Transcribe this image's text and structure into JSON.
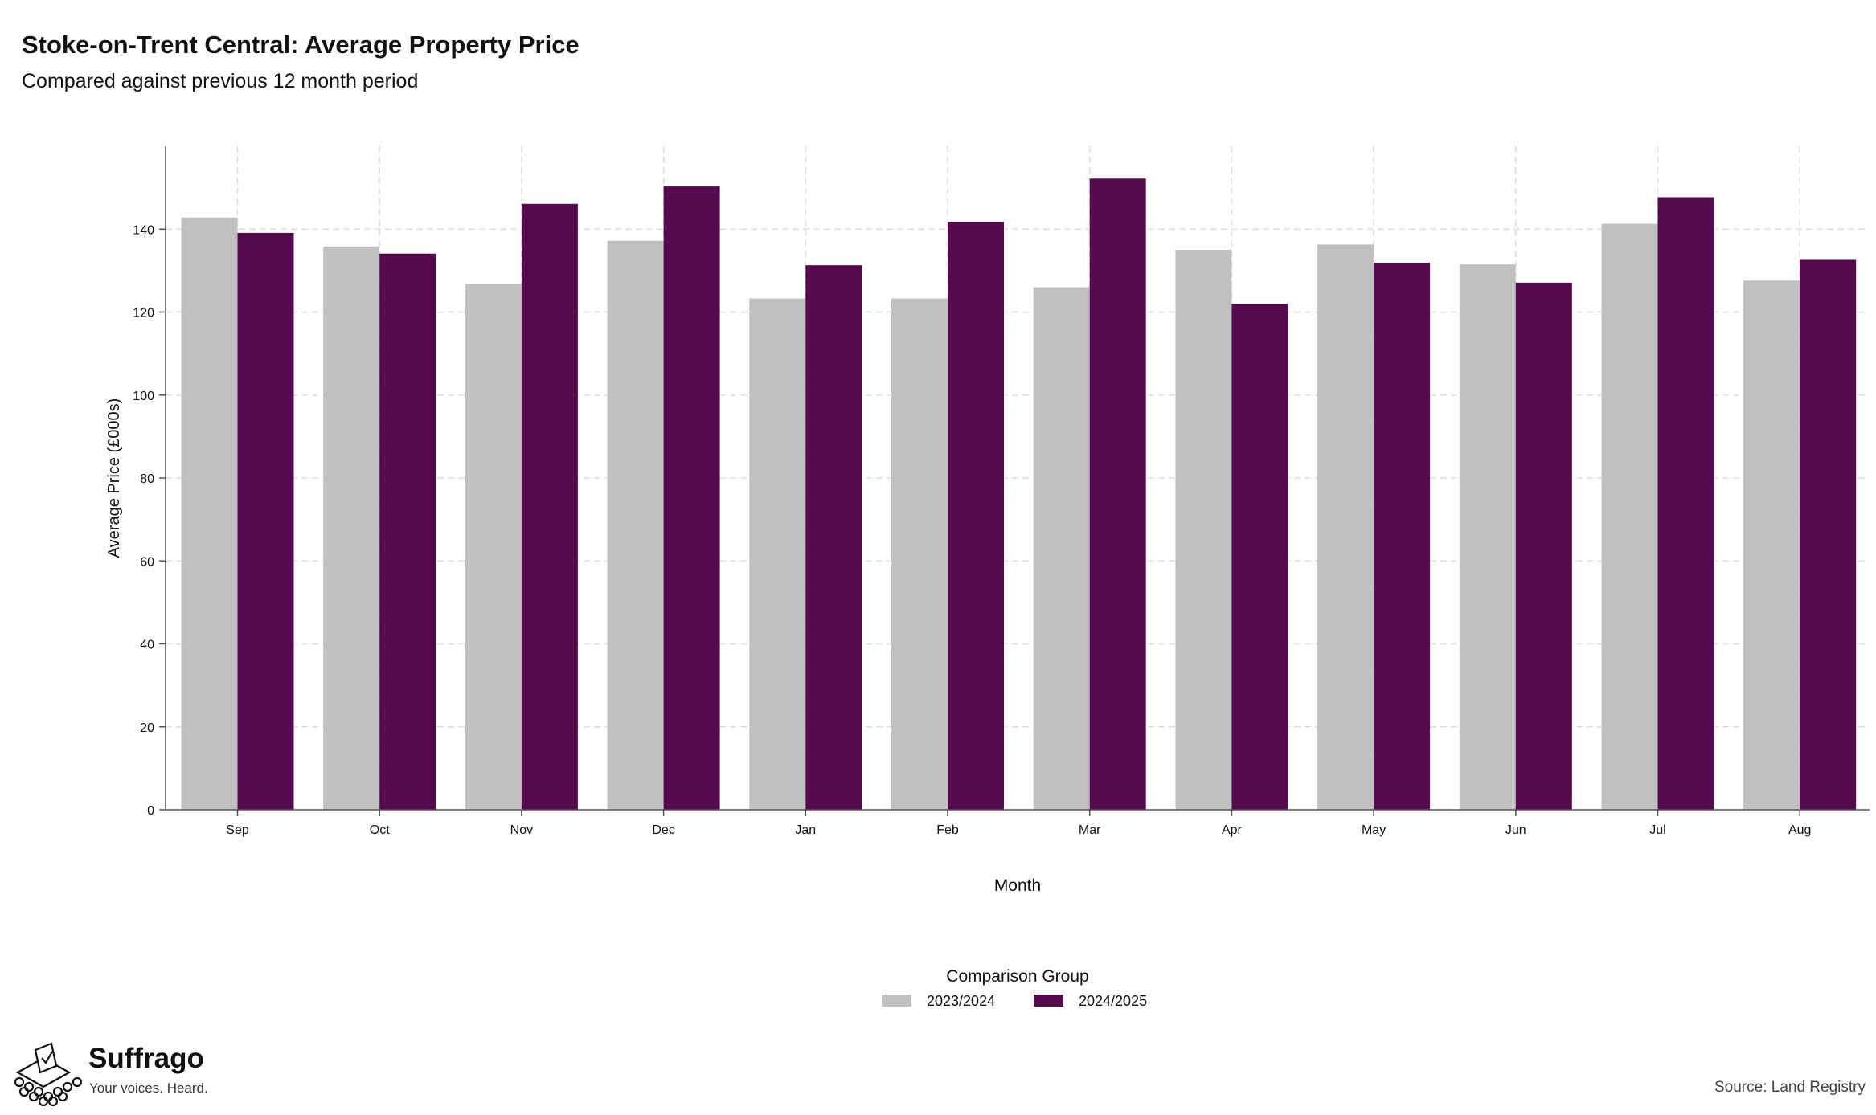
{
  "chart_data": {
    "type": "bar",
    "title": "Stoke-on-Trent Central: Average Property Price",
    "subtitle": "Compared against previous 12 month period",
    "xlabel": "Month",
    "ylabel": "Average Price (£000s)",
    "categories": [
      "Sep",
      "Oct",
      "Nov",
      "Dec",
      "Jan",
      "Feb",
      "Mar",
      "Apr",
      "May",
      "Jun",
      "Jul",
      "Aug"
    ],
    "series": [
      {
        "name": "2023/2024",
        "color": "#c0c0c0",
        "values": [
          142.8,
          135.8,
          126.8,
          137.2,
          123.3,
          123.3,
          126.0,
          135.0,
          136.3,
          131.5,
          141.3,
          127.6
        ]
      },
      {
        "name": "2024/2025",
        "color": "#560b51",
        "values": [
          139.1,
          134.1,
          146.1,
          150.3,
          131.3,
          141.8,
          152.2,
          122.0,
          131.9,
          127.1,
          147.7,
          132.6
        ]
      }
    ],
    "ylim": [
      0,
      160
    ],
    "yticks": [
      0,
      20,
      40,
      60,
      80,
      100,
      120,
      140
    ],
    "grid": true,
    "legend": {
      "title": "Comparison Group",
      "placement": "bottom-center"
    }
  },
  "branding": {
    "name": "Suffrago",
    "tagline": "Your voices. Heard.",
    "logo_icon": "ballot-box-icon"
  },
  "source": "Source: Land Registry"
}
